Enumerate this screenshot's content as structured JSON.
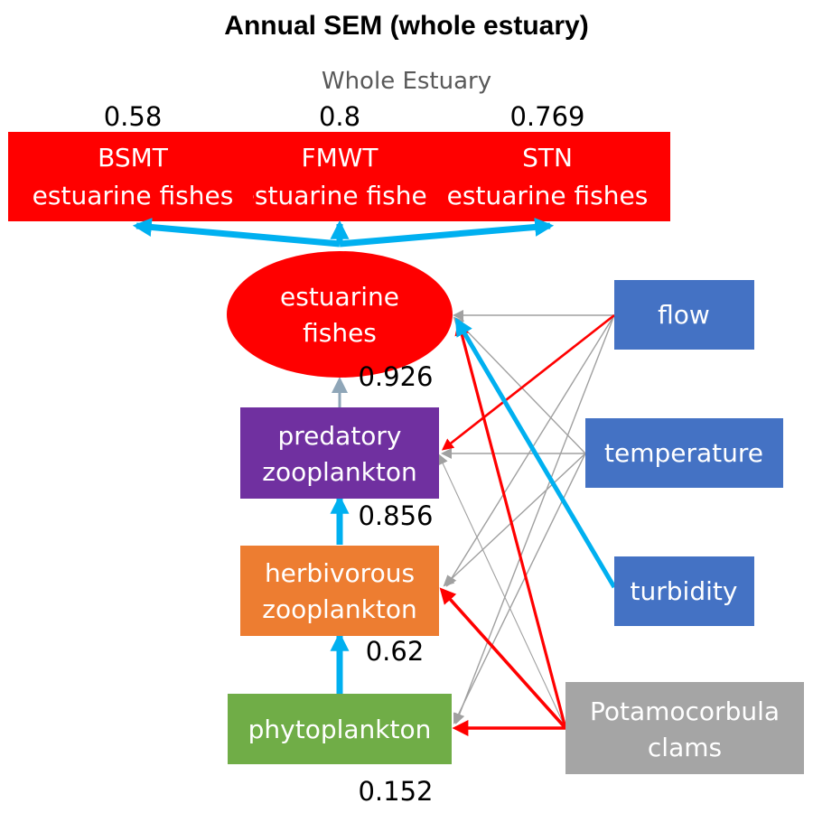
{
  "title": "Annual SEM (whole estuary)",
  "subtitle": "Whole Estuary",
  "colors": {
    "red": "#ff0000",
    "purple": "#7030a0",
    "orange": "#ed7d31",
    "green": "#70ad47",
    "blue_box": "#4472c4",
    "gray_box": "#a5a5a5",
    "positive_arrow": "#00b0f0",
    "negative_arrow": "#ff0000",
    "nonsig_arrow": "#a0a0a0"
  },
  "indicators": [
    {
      "id": "bsmt",
      "line1": "BSMT",
      "line2": "estuarine fishes",
      "r2": "0.58"
    },
    {
      "id": "fmwt",
      "line1": "FMWT",
      "line2": "estuarine fishes",
      "r2": "0.8"
    },
    {
      "id": "stn",
      "line1": "STN",
      "line2": "estuarine fishes",
      "r2": "0.769"
    }
  ],
  "latent": {
    "line1": "estuarine",
    "line2": "fishes",
    "r2": "0.926"
  },
  "nodes": {
    "predatory": {
      "line1": "predatory",
      "line2": "zooplankton",
      "r2": "0.856"
    },
    "herbivorous": {
      "line1": "herbivorous",
      "line2": "zooplankton",
      "r2": "0.62"
    },
    "phytoplankton": {
      "line1": "phytoplankton",
      "r2": "0.152"
    }
  },
  "drivers": {
    "flow": "flow",
    "temperature": "temperature",
    "turbidity": "turbidity",
    "clams": {
      "line1": "Potamocorbula",
      "line2": "clams"
    }
  },
  "paths": [
    {
      "from": "estuarine-fishes",
      "to": "bsmt",
      "sign": "positive"
    },
    {
      "from": "estuarine-fishes",
      "to": "fmwt",
      "sign": "positive"
    },
    {
      "from": "estuarine-fishes",
      "to": "stn",
      "sign": "positive"
    },
    {
      "from": "predatory-zooplankton",
      "to": "estuarine-fishes",
      "sign": "nonsig"
    },
    {
      "from": "herbivorous-zooplankton",
      "to": "predatory-zooplankton",
      "sign": "positive"
    },
    {
      "from": "phytoplankton",
      "to": "herbivorous-zooplankton",
      "sign": "positive"
    },
    {
      "from": "flow",
      "to": "estuarine-fishes",
      "sign": "nonsig"
    },
    {
      "from": "flow",
      "to": "predatory-zooplankton",
      "sign": "negative"
    },
    {
      "from": "flow",
      "to": "herbivorous-zooplankton",
      "sign": "nonsig"
    },
    {
      "from": "flow",
      "to": "phytoplankton",
      "sign": "nonsig"
    },
    {
      "from": "temperature",
      "to": "estuarine-fishes",
      "sign": "nonsig"
    },
    {
      "from": "temperature",
      "to": "predatory-zooplankton",
      "sign": "nonsig"
    },
    {
      "from": "temperature",
      "to": "herbivorous-zooplankton",
      "sign": "nonsig"
    },
    {
      "from": "temperature",
      "to": "phytoplankton",
      "sign": "nonsig"
    },
    {
      "from": "turbidity",
      "to": "estuarine-fishes",
      "sign": "positive"
    },
    {
      "from": "clams",
      "to": "estuarine-fishes",
      "sign": "negative"
    },
    {
      "from": "clams",
      "to": "predatory-zooplankton",
      "sign": "nonsig"
    },
    {
      "from": "clams",
      "to": "herbivorous-zooplankton",
      "sign": "negative"
    },
    {
      "from": "clams",
      "to": "phytoplankton",
      "sign": "negative"
    }
  ]
}
